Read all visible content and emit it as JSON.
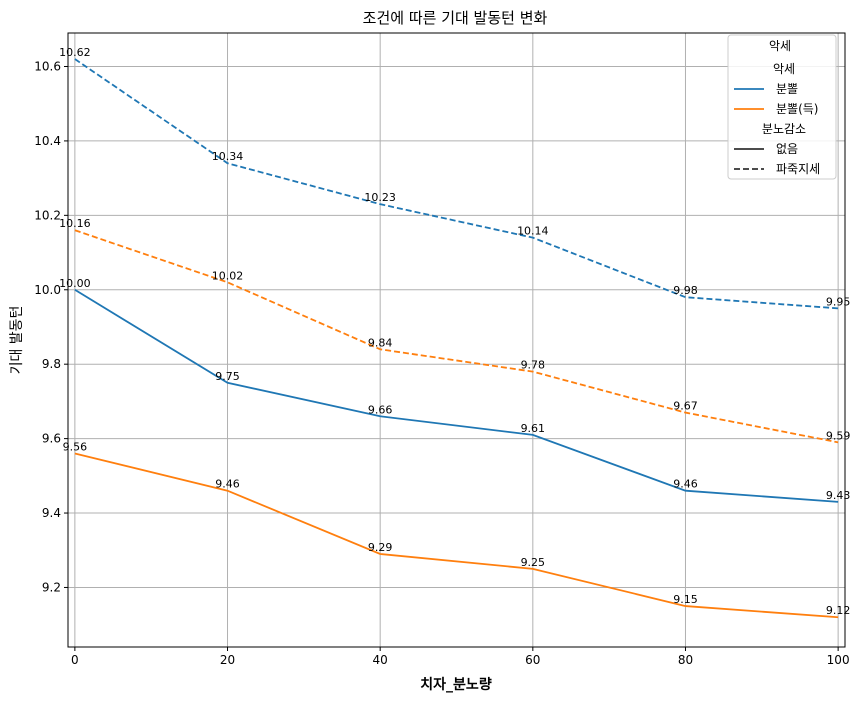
{
  "chart_data": {
    "type": "line",
    "title": "조건에 따른 기대 발동턴 변화",
    "xlabel": "치자_분노량",
    "ylabel": "기대 발동턴",
    "x": [
      0,
      20,
      40,
      60,
      80,
      100
    ],
    "xticks": [
      "0",
      "20",
      "40",
      "60",
      "80",
      "100"
    ],
    "yticks": [
      "9.2",
      "9.4",
      "9.6",
      "9.8",
      "10.0",
      "10.2",
      "10.4",
      "10.6"
    ],
    "xlim": [
      -0.9,
      100.9
    ],
    "ylim": [
      9.04,
      10.69
    ],
    "grid": true,
    "legend_position": "top-right",
    "colors": {
      "분뽈": "#1f77b4",
      "분뽈(득)": "#ff7f0e",
      "neutral": "#333333"
    },
    "series": [
      {
        "name": "분뽈 / 없음",
        "color_key": "분뽈",
        "style": "solid",
        "values": [
          10.0,
          9.75,
          9.66,
          9.61,
          9.46,
          9.43
        ],
        "labels": [
          "10.00",
          "9.75",
          "9.66",
          "9.61",
          "9.46",
          "9.43"
        ]
      },
      {
        "name": "분뽈(득) / 없음",
        "color_key": "분뽈(득)",
        "style": "solid",
        "values": [
          9.56,
          9.46,
          9.29,
          9.25,
          9.15,
          9.12
        ],
        "labels": [
          "9.56",
          "9.46",
          "9.29",
          "9.25",
          "9.15",
          "9.12"
        ]
      },
      {
        "name": "분뽈 / 파죽지세",
        "color_key": "분뽈",
        "style": "dashed",
        "values": [
          10.62,
          10.34,
          10.23,
          10.14,
          9.98,
          9.95
        ],
        "labels": [
          "10.62",
          "10.34",
          "10.23",
          "10.14",
          "9.98",
          "9.95"
        ]
      },
      {
        "name": "분뽈(득) / 파죽지세",
        "color_key": "분뽈(득)",
        "style": "dashed",
        "values": [
          10.16,
          10.02,
          9.84,
          9.78,
          9.67,
          9.59
        ],
        "labels": [
          "10.16",
          "10.02",
          "9.84",
          "9.78",
          "9.67",
          "9.59"
        ]
      }
    ],
    "legend": {
      "title": "악세",
      "items": [
        {
          "kind": "header",
          "text": "악세"
        },
        {
          "kind": "line",
          "text": "분뽈",
          "color_key": "분뽈",
          "style": "solid"
        },
        {
          "kind": "line",
          "text": "분뽈(득)",
          "color_key": "분뽈(득)",
          "style": "solid"
        },
        {
          "kind": "header",
          "text": "분노감소"
        },
        {
          "kind": "line",
          "text": "없음",
          "color_key": "neutral",
          "style": "solid"
        },
        {
          "kind": "line",
          "text": "파죽지세",
          "color_key": "neutral",
          "style": "dashed"
        }
      ]
    }
  }
}
